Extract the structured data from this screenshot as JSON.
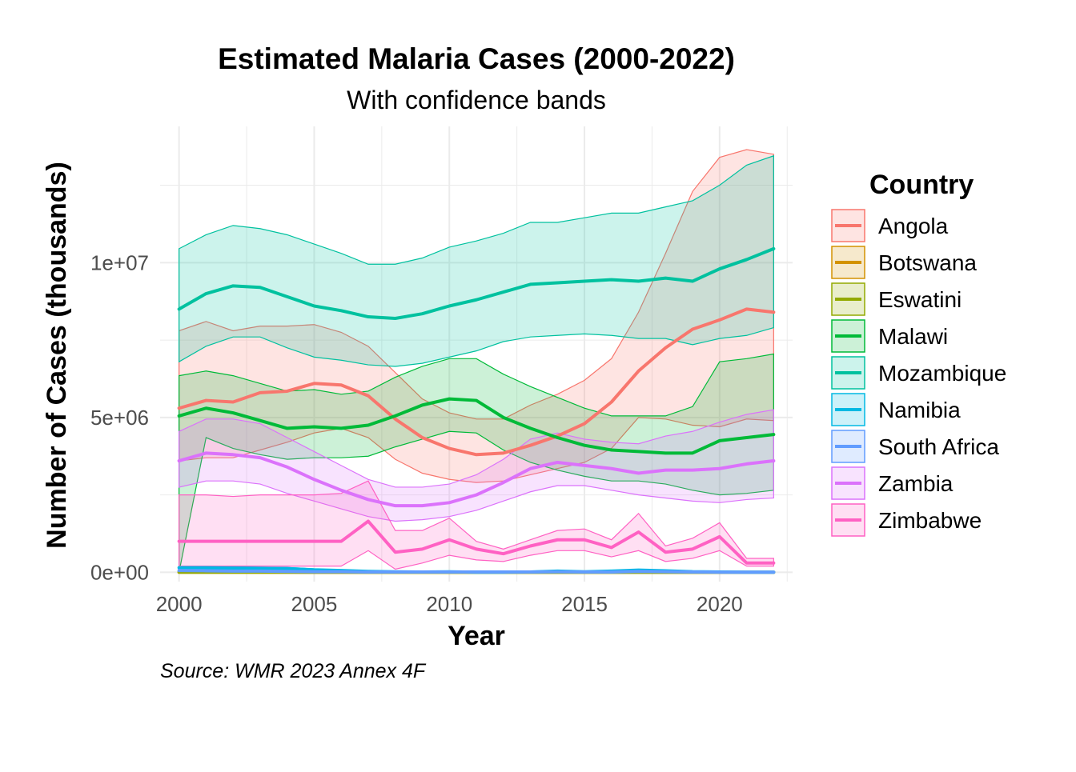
{
  "chart_data": {
    "type": "line",
    "title": "Estimated Malaria Cases (2000-2022)",
    "subtitle": "With confidence bands",
    "xlabel": "Year",
    "ylabel": "Number of Cases (thousands)",
    "caption": "Source: WMR 2023 Annex 4F",
    "legend_title": "Country",
    "legend_position": "right",
    "grid": true,
    "xlim": [
      1999.3,
      2022.7
    ],
    "ylim": [
      -300000,
      14400000
    ],
    "x_ticks": [
      2000,
      2005,
      2010,
      2015,
      2020
    ],
    "x_tick_labels": [
      "2000",
      "2005",
      "2010",
      "2015",
      "2020"
    ],
    "y_ticks": [
      0,
      5000000,
      10000000
    ],
    "y_tick_labels": [
      "0e+00",
      "5e+06",
      "1e+07"
    ],
    "x": [
      2000,
      2001,
      2002,
      2003,
      2004,
      2005,
      2006,
      2007,
      2008,
      2009,
      2010,
      2011,
      2012,
      2013,
      2014,
      2015,
      2016,
      2017,
      2018,
      2019,
      2020,
      2021,
      2022
    ],
    "series": [
      {
        "name": "Angola",
        "color": "#F8766D",
        "values": [
          5300000,
          5550000,
          5500000,
          5800000,
          5850000,
          6100000,
          6050000,
          5700000,
          4950000,
          4350000,
          4000000,
          3800000,
          3850000,
          4100000,
          4400000,
          4800000,
          5500000,
          6500000,
          7250000,
          7850000,
          8150000,
          8500000,
          8400000
        ],
        "lower": [
          3600000,
          3700000,
          3700000,
          3950000,
          4200000,
          4500000,
          4650000,
          4350000,
          3650000,
          3200000,
          3000000,
          2900000,
          2950000,
          3150000,
          3350000,
          3550000,
          4000000,
          5000000,
          4950000,
          4750000,
          4700000,
          4950000,
          4900000
        ],
        "upper": [
          7800000,
          8100000,
          7800000,
          7950000,
          7950000,
          8000000,
          7750000,
          7300000,
          6450000,
          5600000,
          5150000,
          4950000,
          4950000,
          5400000,
          5750000,
          6200000,
          6900000,
          8400000,
          10300000,
          12300000,
          13400000,
          13650000,
          13500000
        ]
      },
      {
        "name": "Botswana",
        "color": "#D39200",
        "values": [
          3000,
          2500,
          2000,
          2000,
          2000,
          1500,
          1500,
          1000,
          1000,
          1000,
          1500,
          1000,
          500,
          500,
          1000,
          1500,
          1000,
          2000,
          1000,
          500,
          1000,
          1000,
          500
        ],
        "lower": [
          2000,
          1500,
          1500,
          1500,
          1500,
          1000,
          1000,
          500,
          500,
          500,
          1000,
          500,
          300,
          300,
          500,
          1000,
          500,
          1500,
          500,
          300,
          500,
          500,
          300
        ],
        "upper": [
          4000,
          3500,
          3000,
          3000,
          3000,
          2000,
          2000,
          1500,
          1500,
          1500,
          2000,
          1500,
          800,
          800,
          1500,
          2000,
          1500,
          2500,
          1500,
          800,
          1500,
          1500,
          800
        ]
      },
      {
        "name": "Eswatini",
        "color": "#93AA00",
        "values": [
          5000,
          4000,
          3000,
          3000,
          2500,
          2000,
          2000,
          1500,
          1000,
          1000,
          1000,
          800,
          800,
          800,
          800,
          800,
          800,
          1000,
          800,
          700,
          800,
          800,
          700
        ],
        "lower": [
          4000,
          3000,
          2000,
          2000,
          2000,
          1500,
          1500,
          1000,
          700,
          700,
          700,
          500,
          500,
          500,
          500,
          500,
          500,
          700,
          500,
          500,
          500,
          500,
          500
        ],
        "upper": [
          6000,
          5000,
          4000,
          4000,
          3500,
          2500,
          2500,
          2000,
          1300,
          1300,
          1300,
          1100,
          1100,
          1100,
          1100,
          1100,
          1100,
          1300,
          1100,
          900,
          1100,
          1100,
          900
        ]
      },
      {
        "name": "Malawi",
        "color": "#00BA38",
        "values": [
          5050000,
          5300000,
          5150000,
          4900000,
          4650000,
          4700000,
          4650000,
          4750000,
          5050000,
          5400000,
          5600000,
          5550000,
          5000000,
          4650000,
          4350000,
          4100000,
          3950000,
          3900000,
          3850000,
          3850000,
          4250000,
          4350000,
          4450000
        ],
        "lower": [
          4000,
          4350000,
          4000000,
          3800000,
          3650000,
          3700000,
          3700000,
          3750000,
          4050000,
          4300000,
          4550000,
          4500000,
          3950000,
          3550000,
          3300000,
          3100000,
          2950000,
          2950000,
          2850000,
          2650000,
          2500000,
          2550000,
          2650000
        ],
        "upper": [
          6350000,
          6500000,
          6350000,
          6100000,
          5850000,
          5900000,
          5750000,
          5850000,
          6300000,
          6650000,
          6900000,
          6900000,
          6400000,
          6000000,
          5650000,
          5300000,
          5050000,
          5050000,
          5050000,
          5350000,
          6800000,
          6900000,
          7050000
        ]
      },
      {
        "name": "Mozambique",
        "color": "#00C19F",
        "values": [
          8500000,
          9000000,
          9250000,
          9200000,
          8900000,
          8600000,
          8450000,
          8250000,
          8200000,
          8350000,
          8600000,
          8800000,
          9050000,
          9300000,
          9350000,
          9400000,
          9450000,
          9400000,
          9500000,
          9400000,
          9800000,
          10100000,
          10450000
        ],
        "lower": [
          6800000,
          7300000,
          7600000,
          7600000,
          7250000,
          6950000,
          6850000,
          6700000,
          6650000,
          6750000,
          6950000,
          7150000,
          7450000,
          7600000,
          7650000,
          7700000,
          7650000,
          7550000,
          7550000,
          7350000,
          7550000,
          7650000,
          7900000
        ],
        "upper": [
          10450000,
          10900000,
          11200000,
          11100000,
          10900000,
          10600000,
          10300000,
          9950000,
          9950000,
          10150000,
          10500000,
          10700000,
          10950000,
          11300000,
          11300000,
          11450000,
          11600000,
          11600000,
          11800000,
          12000000,
          12500000,
          13150000,
          13450000
        ]
      },
      {
        "name": "Namibia",
        "color": "#00B9E3",
        "values": [
          150000,
          150000,
          140000,
          130000,
          120000,
          80000,
          60000,
          30000,
          15000,
          10000,
          15000,
          5000,
          5000,
          10000,
          40000,
          15000,
          40000,
          70000,
          50000,
          20000,
          10000,
          5000,
          5000
        ],
        "lower": [
          100000,
          100000,
          100000,
          90000,
          80000,
          50000,
          40000,
          20000,
          10000,
          5000,
          10000,
          3000,
          3000,
          5000,
          25000,
          10000,
          25000,
          50000,
          35000,
          10000,
          5000,
          3000,
          3000
        ],
        "upper": [
          200000,
          200000,
          180000,
          170000,
          160000,
          110000,
          80000,
          40000,
          20000,
          15000,
          20000,
          8000,
          8000,
          15000,
          55000,
          20000,
          55000,
          90000,
          65000,
          30000,
          15000,
          8000,
          8000
        ]
      },
      {
        "name": "South Africa",
        "color": "#619CFF",
        "values": [
          60000,
          50000,
          40000,
          40000,
          30000,
          20000,
          20000,
          10000,
          10000,
          10000,
          10000,
          10000,
          10000,
          10000,
          15000,
          10000,
          10000,
          30000,
          20000,
          10000,
          5000,
          5000,
          5000
        ],
        "lower": [
          50000,
          40000,
          30000,
          30000,
          20000,
          15000,
          15000,
          8000,
          8000,
          8000,
          8000,
          8000,
          8000,
          8000,
          10000,
          8000,
          8000,
          20000,
          15000,
          8000,
          3000,
          3000,
          3000
        ],
        "upper": [
          70000,
          60000,
          50000,
          50000,
          40000,
          25000,
          25000,
          12000,
          12000,
          12000,
          12000,
          12000,
          12000,
          12000,
          20000,
          12000,
          12000,
          40000,
          25000,
          12000,
          7000,
          7000,
          7000
        ]
      },
      {
        "name": "Zambia",
        "color": "#DB72FB",
        "values": [
          3600000,
          3850000,
          3800000,
          3700000,
          3400000,
          3000000,
          2650000,
          2350000,
          2150000,
          2150000,
          2250000,
          2500000,
          2900000,
          3350000,
          3550000,
          3450000,
          3350000,
          3200000,
          3300000,
          3300000,
          3350000,
          3500000,
          3600000
        ],
        "lower": [
          2750000,
          2950000,
          2950000,
          2850000,
          2550000,
          2300000,
          2050000,
          1800000,
          1650000,
          1700000,
          1800000,
          2000000,
          2300000,
          2600000,
          2800000,
          2800000,
          2650000,
          2500000,
          2400000,
          2300000,
          2250000,
          2350000,
          2400000
        ],
        "upper": [
          4550000,
          4950000,
          4950000,
          4800000,
          4350000,
          3900000,
          3450000,
          3000000,
          2750000,
          2750000,
          2850000,
          3150000,
          3650000,
          4300000,
          4500000,
          4300000,
          4200000,
          4150000,
          4400000,
          4550000,
          4850000,
          5100000,
          5250000
        ]
      },
      {
        "name": "Zimbabwe",
        "color": "#FF61C3",
        "values": [
          1000000,
          1000000,
          1000000,
          1000000,
          1000000,
          1000000,
          1000000,
          1650000,
          650000,
          750000,
          1050000,
          750000,
          600000,
          850000,
          1050000,
          1050000,
          800000,
          1300000,
          650000,
          750000,
          1150000,
          300000,
          300000
        ],
        "lower": [
          200000,
          200000,
          200000,
          200000,
          200000,
          200000,
          200000,
          700000,
          100000,
          300000,
          550000,
          400000,
          350000,
          550000,
          700000,
          700000,
          500000,
          700000,
          350000,
          450000,
          700000,
          200000,
          200000
        ],
        "upper": [
          2500000,
          2500000,
          2450000,
          2500000,
          2500000,
          2500000,
          2550000,
          2950000,
          1350000,
          1350000,
          1750000,
          1000000,
          750000,
          1050000,
          1350000,
          1400000,
          1050000,
          1900000,
          850000,
          1100000,
          1600000,
          450000,
          450000
        ]
      }
    ]
  }
}
